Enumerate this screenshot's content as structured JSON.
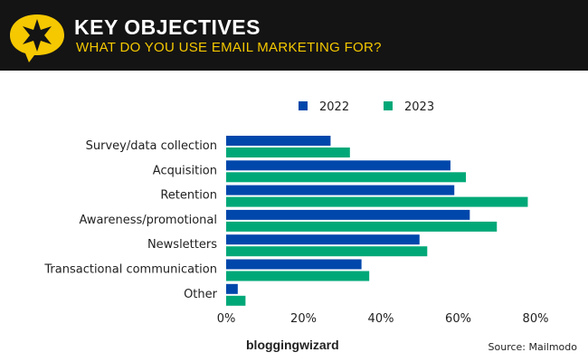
{
  "header": {
    "title": "KEY OBJECTIVES",
    "subtitle": "WHAT DO YOU USE EMAIL MARKETING FOR?",
    "icon": "star-speech-bubble-icon",
    "accent": "#f5c800"
  },
  "footer": {
    "brand": "bloggingwizard",
    "source": "Source: Mailmodo"
  },
  "chart_data": {
    "type": "bar",
    "orientation": "horizontal",
    "categories": [
      "Survey/data collection",
      "Acquisition",
      "Retention",
      "Awareness/promotional",
      "Newsletters",
      "Transactional communication",
      "Other"
    ],
    "series": [
      {
        "name": "2022",
        "color": "#0047ab",
        "values": [
          27,
          58,
          59,
          63,
          50,
          35,
          3
        ]
      },
      {
        "name": "2023",
        "color": "#00a878",
        "values": [
          32,
          62,
          78,
          70,
          52,
          37,
          5
        ]
      }
    ],
    "xlim": [
      0,
      80
    ],
    "xticks": [
      "0%",
      "20%",
      "40%",
      "60%",
      "80%"
    ],
    "legend": "top",
    "grid": false
  }
}
